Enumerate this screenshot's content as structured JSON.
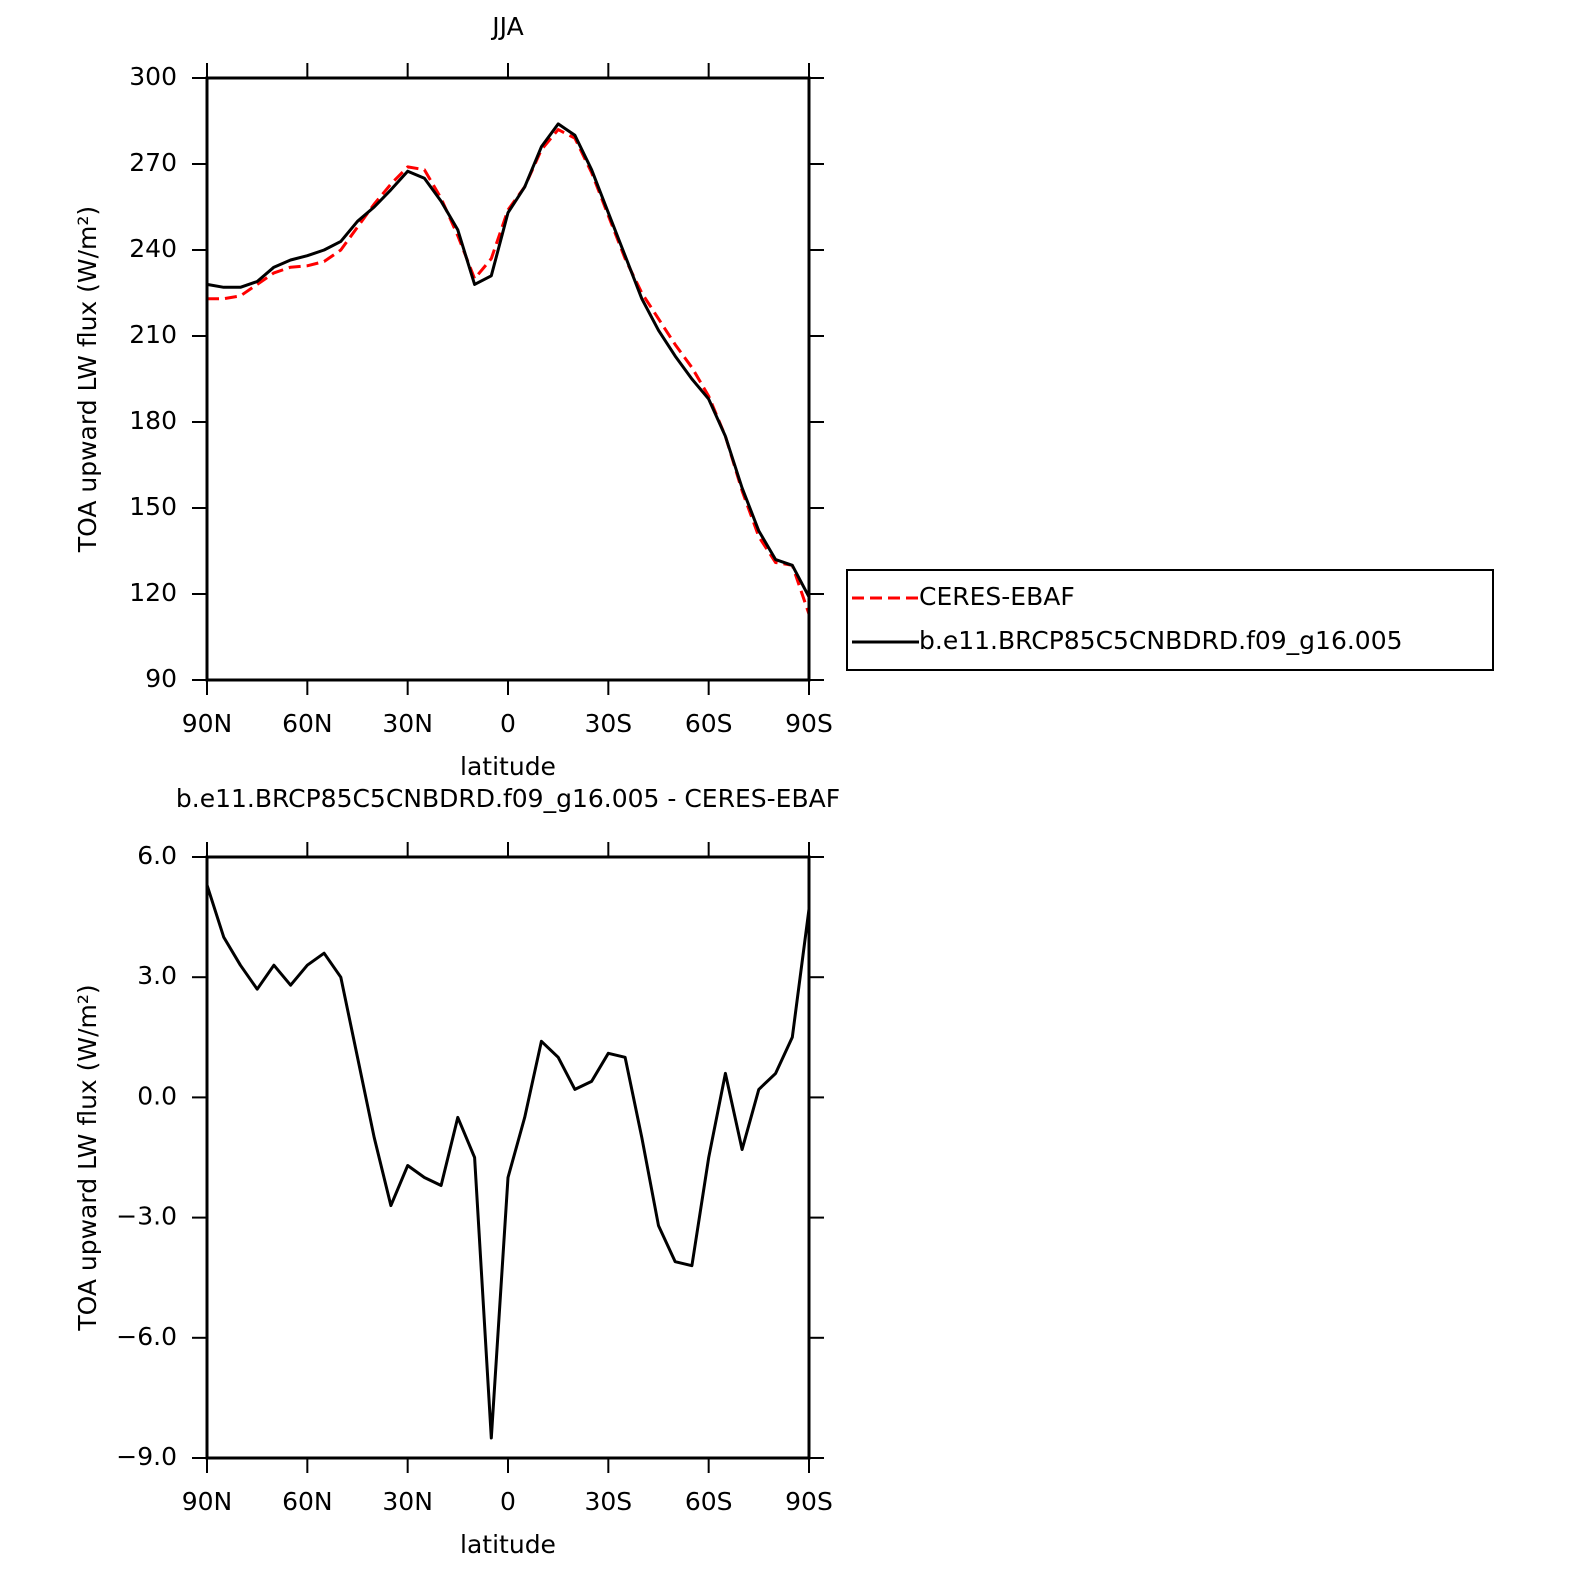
{
  "chart_data": [
    {
      "type": "line",
      "title": "JJA",
      "xlabel": "latitude",
      "ylabel": "TOA upward LW flux (W/m²)",
      "x": [
        90,
        85,
        80,
        75,
        70,
        65,
        60,
        55,
        50,
        45,
        40,
        35,
        30,
        25,
        20,
        15,
        10,
        5,
        0,
        -5,
        -10,
        -15,
        -20,
        -25,
        -30,
        -35,
        -40,
        -45,
        -50,
        -55,
        -60,
        -65,
        -70,
        -75,
        -80,
        -85,
        -90
      ],
      "series": [
        {
          "name": "CERES-EBAF",
          "color": "#ff0000",
          "style": "dashed",
          "values": [
            223,
            223,
            224,
            228,
            232,
            234,
            234.5,
            236,
            240,
            248,
            256,
            263,
            269,
            268,
            258,
            245,
            230,
            237,
            254,
            262,
            275,
            282,
            279,
            267,
            252,
            237,
            225,
            216,
            207,
            199,
            189,
            175,
            156,
            140,
            131,
            130,
            113
          ]
        },
        {
          "name": "b.e11.BRCP85C5CNBDRD.f09_g16.005",
          "color": "#000000",
          "style": "solid",
          "values": [
            228,
            227,
            227,
            229,
            234,
            236.5,
            238,
            240,
            243,
            250,
            255,
            261,
            267.5,
            265,
            257,
            247,
            228,
            231,
            253,
            262,
            276,
            284,
            280,
            268,
            253,
            238,
            223,
            212,
            203,
            195,
            188,
            175,
            157,
            142,
            132,
            130,
            119
          ]
        }
      ],
      "xlim": [
        90,
        -90
      ],
      "xticks": [
        {
          "value": 90,
          "label": "90N"
        },
        {
          "value": 60,
          "label": "60N"
        },
        {
          "value": 30,
          "label": "30N"
        },
        0,
        {
          "value": -30,
          "label": "30S"
        },
        {
          "value": -60,
          "label": "60S"
        },
        {
          "value": -90,
          "label": "90S"
        }
      ],
      "ylim": [
        90,
        300
      ],
      "yticks": [
        90,
        120,
        150,
        180,
        210,
        240,
        270,
        300
      ],
      "legend": "right"
    },
    {
      "type": "line",
      "title": "b.e11.BRCP85C5CNBDRD.f09_g16.005 - CERES-EBAF",
      "xlabel": "latitude",
      "ylabel": "TOA upward LW flux (W/m²)",
      "x": [
        90,
        85,
        80,
        75,
        70,
        65,
        60,
        55,
        50,
        45,
        40,
        35,
        30,
        25,
        20,
        15,
        10,
        5,
        0,
        -5,
        -10,
        -15,
        -20,
        -25,
        -30,
        -35,
        -40,
        -45,
        -50,
        -55,
        -60,
        -65,
        -70,
        -75,
        -80,
        -85,
        -90
      ],
      "values": [
        5.3,
        4.0,
        3.3,
        2.7,
        3.3,
        2.8,
        3.3,
        3.6,
        3.0,
        1.0,
        -1.0,
        -2.7,
        -1.7,
        -2.0,
        -2.2,
        -0.5,
        -1.5,
        -8.5,
        -2.0,
        -0.5,
        1.4,
        1.0,
        0.2,
        0.4,
        1.1,
        1.0,
        -1.0,
        -3.2,
        -4.1,
        -4.2,
        -1.5,
        0.6,
        -1.3,
        0.2,
        0.6,
        1.5,
        4.7
      ],
      "color": "#000000",
      "xlim": [
        90,
        -90
      ],
      "xticks": [
        {
          "value": 90,
          "label": "90N"
        },
        {
          "value": 60,
          "label": "60N"
        },
        {
          "value": 30,
          "label": "30N"
        },
        0,
        {
          "value": -30,
          "label": "30S"
        },
        {
          "value": -60,
          "label": "60S"
        },
        {
          "value": -90,
          "label": "90S"
        }
      ],
      "ylim": [
        -9,
        6
      ],
      "yticks": [
        {
          "value": 6,
          "label": "6.0"
        },
        {
          "value": 3,
          "label": "3.0"
        },
        {
          "value": 0,
          "label": "0.0"
        },
        {
          "value": -3,
          "label": "−3.0"
        },
        {
          "value": -6,
          "label": "−6.0"
        },
        {
          "value": -9,
          "label": "−9.0"
        }
      ]
    }
  ]
}
